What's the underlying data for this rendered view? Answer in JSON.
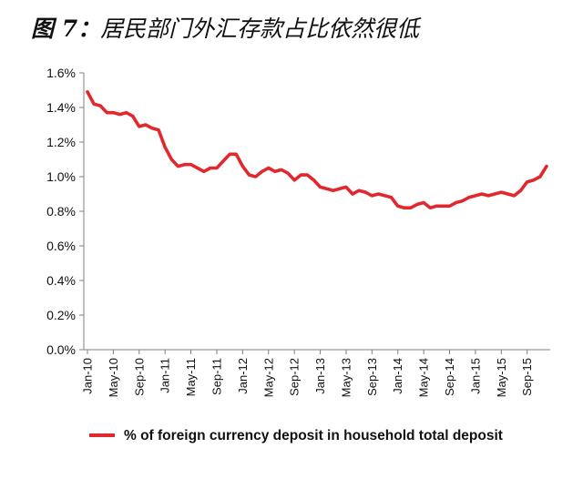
{
  "chart_data": {
    "type": "line",
    "title_prefix": "图 7：",
    "title": "居民部门外汇存款占比依然很低",
    "xlabel": "",
    "ylabel": "",
    "ylim": [
      0.0,
      1.6
    ],
    "y_ticks": [
      "0.0%",
      "0.2%",
      "0.4%",
      "0.6%",
      "0.8%",
      "1.0%",
      "1.2%",
      "1.4%",
      "1.6%"
    ],
    "x_ticks": [
      "Jan-10",
      "May-10",
      "Sep-10",
      "Jan-11",
      "May-11",
      "Sep-11",
      "Jan-12",
      "May-12",
      "Sep-12",
      "Jan-13",
      "May-13",
      "Sep-13",
      "Jan-14",
      "May-14",
      "Sep-14",
      "Jan-15",
      "May-15",
      "Sep-15"
    ],
    "grid": false,
    "legend_position": "bottom",
    "colors": {
      "series": "#e0282e",
      "axis": "#808080"
    },
    "series": [
      {
        "name": "% of foreign currency deposit in household total deposit",
        "x": [
          "Jan-10",
          "Feb-10",
          "Mar-10",
          "Apr-10",
          "May-10",
          "Jun-10",
          "Jul-10",
          "Aug-10",
          "Sep-10",
          "Oct-10",
          "Nov-10",
          "Dec-10",
          "Jan-11",
          "Feb-11",
          "Mar-11",
          "Apr-11",
          "May-11",
          "Jun-11",
          "Jul-11",
          "Aug-11",
          "Sep-11",
          "Oct-11",
          "Nov-11",
          "Dec-11",
          "Jan-12",
          "Feb-12",
          "Mar-12",
          "Apr-12",
          "May-12",
          "Jun-12",
          "Jul-12",
          "Aug-12",
          "Sep-12",
          "Oct-12",
          "Nov-12",
          "Dec-12",
          "Jan-13",
          "Feb-13",
          "Mar-13",
          "Apr-13",
          "May-13",
          "Jun-13",
          "Jul-13",
          "Aug-13",
          "Sep-13",
          "Oct-13",
          "Nov-13",
          "Dec-13",
          "Jan-14",
          "Feb-14",
          "Mar-14",
          "Apr-14",
          "May-14",
          "Jun-14",
          "Jul-14",
          "Aug-14",
          "Sep-14",
          "Oct-14",
          "Nov-14",
          "Dec-14",
          "Jan-15",
          "Feb-15",
          "Mar-15",
          "Apr-15",
          "May-15",
          "Jun-15",
          "Jul-15",
          "Aug-15",
          "Sep-15",
          "Oct-15",
          "Nov-15",
          "Dec-15"
        ],
        "values": [
          1.49,
          1.42,
          1.41,
          1.37,
          1.37,
          1.36,
          1.37,
          1.35,
          1.29,
          1.3,
          1.28,
          1.27,
          1.17,
          1.1,
          1.06,
          1.07,
          1.07,
          1.05,
          1.03,
          1.05,
          1.05,
          1.09,
          1.13,
          1.13,
          1.06,
          1.01,
          1.0,
          1.03,
          1.05,
          1.03,
          1.04,
          1.02,
          0.98,
          1.01,
          1.01,
          0.98,
          0.94,
          0.93,
          0.92,
          0.93,
          0.94,
          0.9,
          0.92,
          0.91,
          0.89,
          0.9,
          0.89,
          0.88,
          0.83,
          0.82,
          0.82,
          0.84,
          0.85,
          0.82,
          0.83,
          0.83,
          0.83,
          0.85,
          0.86,
          0.88,
          0.89,
          0.9,
          0.89,
          0.9,
          0.91,
          0.9,
          0.89,
          0.92,
          0.97,
          0.98,
          1.0,
          1.06
        ]
      }
    ]
  }
}
